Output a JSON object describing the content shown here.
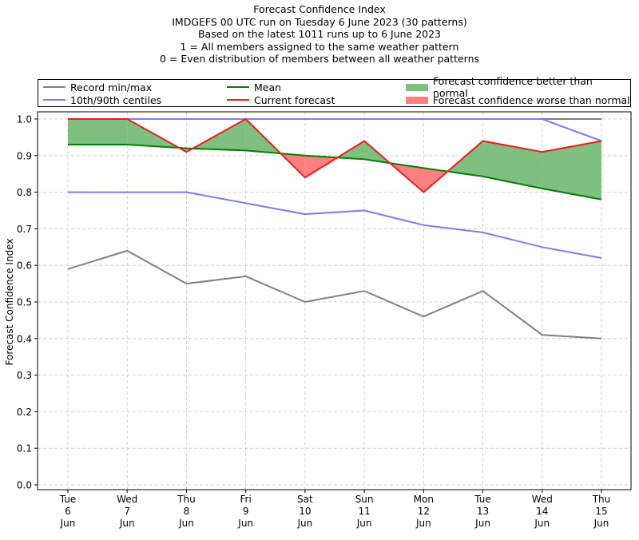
{
  "chart_data": {
    "type": "line",
    "title_lines": [
      "Forecast Confidence Index",
      "IMDGEFS 00 UTC run on Tuesday 6 June 2023 (30 patterns)",
      "Based on the latest 1011 runs up to 6 June 2023",
      "1 = All members assigned to the same weather pattern",
      "0 = Even distribution of members between all weather patterns"
    ],
    "ylabel": "Forecast Confidence Index",
    "xlabel": "",
    "ylim": [
      0.0,
      1.0
    ],
    "yticks": [
      "0.0",
      "0.1",
      "0.2",
      "0.3",
      "0.4",
      "0.5",
      "0.6",
      "0.7",
      "0.8",
      "0.9",
      "1.0"
    ],
    "grid": true,
    "legend_position": "top",
    "categories": [
      [
        "Tue",
        "6",
        "Jun"
      ],
      [
        "Wed",
        "7",
        "Jun"
      ],
      [
        "Thu",
        "8",
        "Jun"
      ],
      [
        "Fri",
        "9",
        "Jun"
      ],
      [
        "Sat",
        "10",
        "Jun"
      ],
      [
        "Sun",
        "11",
        "Jun"
      ],
      [
        "Mon",
        "12",
        "Jun"
      ],
      [
        "Tue",
        "13",
        "Jun"
      ],
      [
        "Wed",
        "14",
        "Jun"
      ],
      [
        "Thu",
        "15",
        "Jun"
      ]
    ],
    "series": [
      {
        "name": "Record min",
        "legend": "Record min/max",
        "color": "#808080",
        "values": [
          0.59,
          0.64,
          0.55,
          0.57,
          0.5,
          0.53,
          0.46,
          0.53,
          0.41,
          0.4
        ]
      },
      {
        "name": "Record max",
        "legend": "Record min/max",
        "color": "#808080",
        "values": [
          1.0,
          1.0,
          1.0,
          1.0,
          1.0,
          1.0,
          1.0,
          1.0,
          1.0,
          1.0
        ]
      },
      {
        "name": "10th centile",
        "legend": "10th/90th centiles",
        "color": "#7b7bf5",
        "values": [
          0.8,
          0.8,
          0.8,
          0.77,
          0.74,
          0.75,
          0.71,
          0.69,
          0.65,
          0.62
        ]
      },
      {
        "name": "90th centile",
        "legend": "10th/90th centiles",
        "color": "#7b7bf5",
        "values": [
          1.0,
          1.0,
          1.0,
          1.0,
          1.0,
          1.0,
          1.0,
          1.0,
          1.0,
          0.94
        ]
      },
      {
        "name": "Mean",
        "legend": "Mean",
        "color": "#008000",
        "values": [
          0.93,
          0.93,
          0.92,
          0.914,
          0.9,
          0.89,
          0.866,
          0.843,
          0.81,
          0.78
        ]
      },
      {
        "name": "Current forecast",
        "legend": "Current forecast",
        "color": "#ee1c1c",
        "values": [
          1.0,
          1.0,
          0.91,
          1.0,
          0.84,
          0.94,
          0.8,
          0.94,
          0.91,
          0.94
        ]
      }
    ],
    "fills": [
      {
        "name": "Forecast confidence better than normal",
        "color": "#7fbf7f",
        "between": [
          "Mean",
          "Current forecast"
        ],
        "where": "current >= mean"
      },
      {
        "name": "Forecast confidence worse than normal",
        "color": "#ff8080",
        "between": [
          "Mean",
          "Current forecast"
        ],
        "where": "current < mean"
      }
    ],
    "legend": [
      {
        "label": "Record min/max",
        "kind": "line",
        "color": "#808080"
      },
      {
        "label": "10th/90th centiles",
        "kind": "line",
        "color": "#7b7bf5"
      },
      {
        "label": "Mean",
        "kind": "line",
        "color": "#008000"
      },
      {
        "label": "Current forecast",
        "kind": "line",
        "color": "#ee1c1c"
      },
      {
        "label": "Forecast confidence better than normal",
        "kind": "patch",
        "color": "#7fbf7f"
      },
      {
        "label": "Forecast confidence worse than normal",
        "kind": "patch",
        "color": "#ff8080"
      }
    ]
  }
}
